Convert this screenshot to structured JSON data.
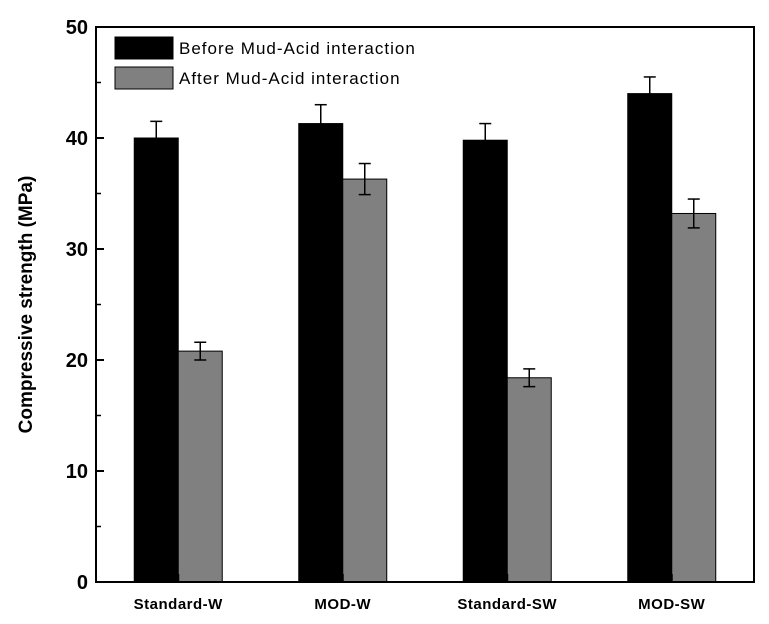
{
  "chart_data": {
    "type": "bar",
    "title": "",
    "xlabel": "",
    "ylabel": "Compressive strength (MPa)",
    "ylim": [
      0,
      50
    ],
    "yticks": [
      0,
      10,
      20,
      30,
      40,
      50
    ],
    "categories": [
      "Standard-W",
      "MOD-W",
      "Standard-SW",
      "MOD-SW"
    ],
    "series": [
      {
        "name": "Before Mud-Acid interaction",
        "color": "#000000",
        "values": [
          40.0,
          41.3,
          39.8,
          44.0
        ],
        "errors": [
          1.5,
          1.7,
          1.5,
          1.5
        ]
      },
      {
        "name": "After Mud-Acid interaction",
        "color": "#808080",
        "values": [
          20.8,
          36.3,
          18.4,
          33.2
        ],
        "errors": [
          0.8,
          1.4,
          0.8,
          1.3
        ]
      }
    ],
    "legend_position": "top-left",
    "grid": false
  }
}
